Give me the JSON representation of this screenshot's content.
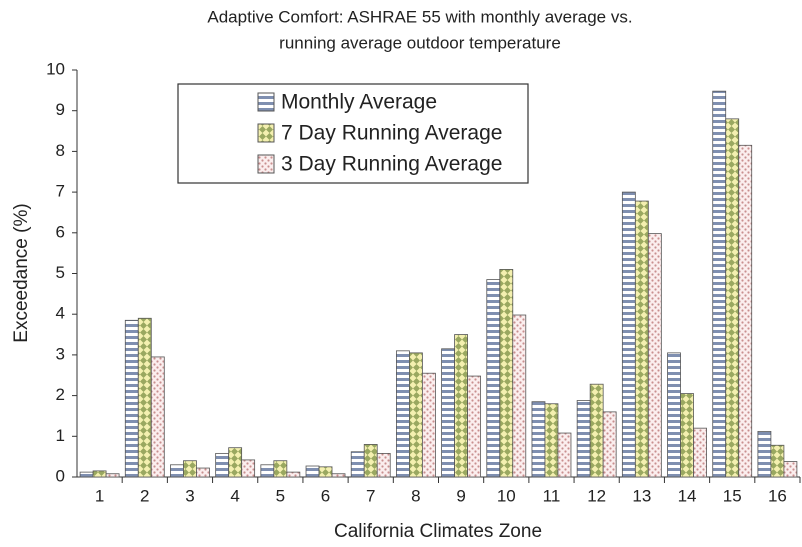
{
  "chart_data": {
    "type": "bar",
    "title": [
      "Adaptive Comfort: ASHRAE 55 with monthly average vs.",
      "running average outdoor temperature"
    ],
    "x_label": "California Climates Zone",
    "y_label": "Exceedance (%)",
    "categories": [
      "1",
      "2",
      "3",
      "4",
      "5",
      "6",
      "7",
      "8",
      "9",
      "10",
      "11",
      "12",
      "13",
      "14",
      "15",
      "16"
    ],
    "series": [
      {
        "name": "Monthly Average",
        "color": "#7f8fb0",
        "hatch": "stripes",
        "values": [
          0.12,
          3.85,
          0.3,
          0.58,
          0.3,
          0.27,
          0.62,
          3.1,
          3.15,
          4.85,
          1.85,
          1.88,
          7.0,
          3.05,
          9.48,
          1.12
        ]
      },
      {
        "name": "7 Day Running Average",
        "color": "#9aa860",
        "hatch": "diamonds",
        "values": [
          0.15,
          3.9,
          0.4,
          0.72,
          0.4,
          0.25,
          0.8,
          3.05,
          3.5,
          5.1,
          1.8,
          2.28,
          6.78,
          2.05,
          8.8,
          0.78
        ]
      },
      {
        "name": "3 Day Running Average",
        "color": "#c98f8f",
        "hatch": "dots",
        "values": [
          0.08,
          2.95,
          0.22,
          0.42,
          0.12,
          0.08,
          0.58,
          2.55,
          2.48,
          3.98,
          1.08,
          1.6,
          5.98,
          1.2,
          8.15,
          0.38
        ]
      }
    ],
    "ylim": [
      0,
      10
    ],
    "yticks": [
      0,
      1,
      2,
      3,
      4,
      5,
      6,
      7,
      8,
      9,
      10
    ],
    "grid": false
  }
}
